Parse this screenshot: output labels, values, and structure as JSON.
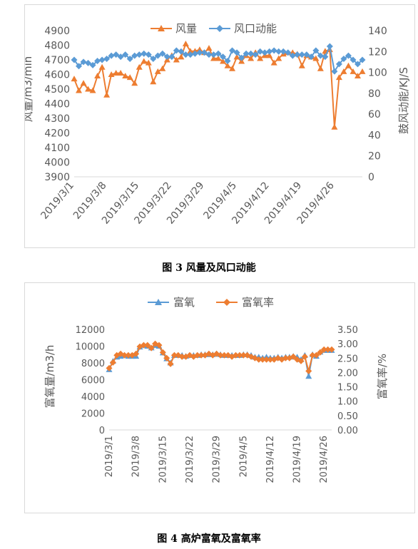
{
  "figure3": {
    "caption": "图 3 风量及风口动能",
    "chart_data": {
      "type": "line",
      "legend": [
        "风量",
        "风口动能"
      ],
      "legend_position": "top",
      "ylabel": "风量/m3/min",
      "y2label": "鼓风动能/KJ/S",
      "ylim": [
        3900,
        4900
      ],
      "y2lim": [
        0,
        140
      ],
      "yticks": [
        "4900",
        "4800",
        "4700",
        "4600",
        "4500",
        "4400",
        "4300",
        "4200",
        "4100",
        "4000",
        "3900"
      ],
      "y2ticks": [
        "140",
        "120",
        "100",
        "80",
        "60",
        "40",
        "20",
        "0"
      ],
      "xtick_labels": [
        "2019/3/1",
        "2019/3/8",
        "2019/3/15",
        "2019/3/22",
        "2019/3/29",
        "2019/4/5",
        "2019/4/12",
        "2019/4/19",
        "2019/4/26"
      ],
      "series": [
        {
          "name": "风量",
          "color": "#ED7D31",
          "marker": "triangle",
          "axis": "left",
          "values": [
            4570,
            4490,
            4540,
            4500,
            4490,
            4590,
            4650,
            4460,
            4600,
            4610,
            4610,
            4590,
            4580,
            4540,
            4650,
            4690,
            4680,
            4550,
            4620,
            4640,
            4700,
            4730,
            4700,
            4720,
            4810,
            4760,
            4760,
            4770,
            4750,
            4780,
            4710,
            4710,
            4690,
            4660,
            4640,
            4720,
            4690,
            4730,
            4710,
            4750,
            4710,
            4730,
            4730,
            4680,
            4710,
            4740,
            4750,
            4750,
            4740,
            4660,
            4730,
            4720,
            4710,
            4640,
            4760,
            4770,
            4240,
            4580,
            4620,
            4660,
            4620,
            4590,
            4620
          ]
        },
        {
          "name": "风口动能",
          "color": "#5B9BD5",
          "marker": "diamond",
          "axis": "right",
          "values": [
            112,
            106,
            110,
            109,
            107,
            111,
            112,
            113,
            116,
            117,
            115,
            117,
            113,
            116,
            117,
            118,
            117,
            113,
            116,
            118,
            115,
            115,
            121,
            120,
            117,
            117,
            118,
            119,
            119,
            117,
            117,
            118,
            115,
            111,
            121,
            119,
            114,
            118,
            118,
            117,
            120,
            119,
            120,
            121,
            120,
            120,
            119,
            116,
            117,
            117,
            117,
            115,
            121,
            116,
            115,
            125,
            101,
            108,
            113,
            116,
            112,
            108,
            112
          ]
        }
      ]
    }
  },
  "figure4": {
    "caption": "图 4 高炉富氧及富氧率",
    "chart_data": {
      "type": "line",
      "legend": [
        "富氧",
        "富氧率"
      ],
      "legend_position": "top",
      "ylabel": "富氧量/m3/h",
      "y2label": "富氧率/%",
      "ylim": [
        0,
        12000
      ],
      "y2lim": [
        0,
        3.5
      ],
      "yticks": [
        "12000",
        "10000",
        "8000",
        "6000",
        "4000",
        "2000",
        "0"
      ],
      "y2ticks": [
        "3.50",
        "3.00",
        "2.50",
        "2.00",
        "1.50",
        "1.00",
        "0.50",
        "0.00"
      ],
      "xtick_labels": [
        "2019/3/1",
        "2019/3/8",
        "2019/3/15",
        "2019/3/22",
        "2019/3/29",
        "2019/4/5",
        "2019/4/12",
        "2019/4/19",
        "2019/4/26"
      ],
      "series": [
        {
          "name": "富氧",
          "color": "#5B9BD5",
          "marker": "triangle",
          "axis": "left",
          "values": [
            7200,
            8200,
            8700,
            8800,
            8900,
            8800,
            8800,
            8800,
            9900,
            10100,
            10000,
            9800,
            10100,
            10000,
            9200,
            8500,
            8000,
            8900,
            8900,
            8900,
            8800,
            8900,
            8900,
            8900,
            9000,
            9000,
            9000,
            9000,
            9100,
            9000,
            8900,
            8900,
            8900,
            8900,
            8900,
            9000,
            9000,
            8900,
            8700,
            8700,
            8600,
            8700,
            8600,
            8600,
            8700,
            8600,
            8700,
            8700,
            8800,
            8700,
            8400,
            8900,
            6400,
            9000,
            8800,
            9300,
            9500,
            9500,
            9500
          ]
        },
        {
          "name": "富氧率",
          "color": "#ED7D31",
          "marker": "diamond",
          "axis": "right",
          "values": [
            2.15,
            2.35,
            2.6,
            2.65,
            2.6,
            2.6,
            2.6,
            2.65,
            2.9,
            2.95,
            2.95,
            2.85,
            3.0,
            2.95,
            2.7,
            2.5,
            2.3,
            2.6,
            2.6,
            2.55,
            2.55,
            2.6,
            2.55,
            2.6,
            2.6,
            2.6,
            2.65,
            2.6,
            2.65,
            2.6,
            2.6,
            2.6,
            2.55,
            2.6,
            2.6,
            2.6,
            2.6,
            2.55,
            2.5,
            2.45,
            2.45,
            2.45,
            2.45,
            2.45,
            2.5,
            2.45,
            2.5,
            2.5,
            2.55,
            2.45,
            2.4,
            2.55,
            2.05,
            2.6,
            2.6,
            2.7,
            2.8,
            2.8,
            2.8
          ]
        }
      ]
    }
  }
}
